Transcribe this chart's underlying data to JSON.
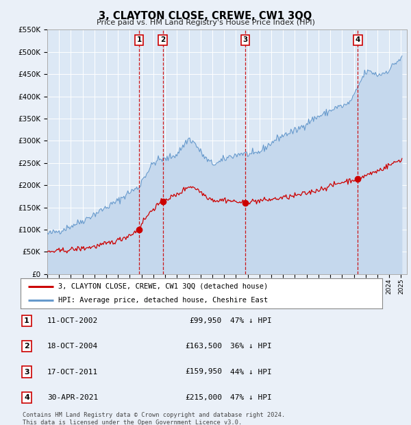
{
  "title": "3, CLAYTON CLOSE, CREWE, CW1 3QQ",
  "subtitle": "Price paid vs. HM Land Registry's House Price Index (HPI)",
  "footer1": "Contains HM Land Registry data © Crown copyright and database right 2024.",
  "footer2": "This data is licensed under the Open Government Licence v3.0.",
  "legend_line1": "3, CLAYTON CLOSE, CREWE, CW1 3QQ (detached house)",
  "legend_line2": "HPI: Average price, detached house, Cheshire East",
  "transactions": [
    {
      "id": 1,
      "date": "11-OCT-2002",
      "year": 2002.79,
      "price": 99950,
      "pct": "47% ↓ HPI"
    },
    {
      "id": 2,
      "date": "18-OCT-2004",
      "year": 2004.79,
      "price": 163500,
      "pct": "36% ↓ HPI"
    },
    {
      "id": 3,
      "date": "17-OCT-2011",
      "year": 2011.79,
      "price": 159950,
      "pct": "44% ↓ HPI"
    },
    {
      "id": 4,
      "date": "30-APR-2021",
      "year": 2021.33,
      "price": 215000,
      "pct": "47% ↓ HPI"
    }
  ],
  "ylim": [
    0,
    550000
  ],
  "xlim_start": 1995.0,
  "xlim_end": 2025.5,
  "background_color": "#eaf0f8",
  "plot_bg_color": "#dce8f5",
  "grid_color": "#ffffff",
  "red_line_color": "#cc0000",
  "blue_line_color": "#6699cc",
  "blue_fill_color": "#c5d8ed",
  "red_dashed_color": "#cc0000",
  "marker_box_color": "#cc0000"
}
